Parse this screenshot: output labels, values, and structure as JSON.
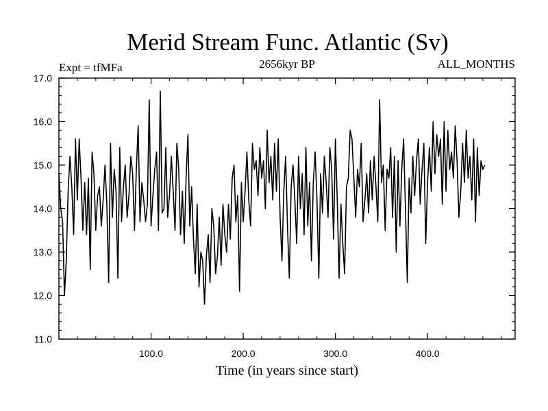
{
  "chart_data": {
    "type": "line",
    "title": "Merid Stream Func. Atlantic (Sv)",
    "subtitle_left": "Expt = tfMFa",
    "subtitle_center": "2656kyr BP",
    "subtitle_right": "ALL_MONTHS",
    "xlabel": "Time (in years since start)",
    "ylabel": "",
    "xlim": [
      0,
      495
    ],
    "ylim": [
      11.0,
      17.0
    ],
    "x_ticks": [
      100,
      200,
      300,
      400
    ],
    "x_tick_labels": [
      "100.0",
      "200.0",
      "300.0",
      "400.0"
    ],
    "y_ticks": [
      11,
      12,
      13,
      14,
      15,
      16,
      17
    ],
    "y_tick_labels": [
      "11.0",
      "12.0",
      "13.0",
      "14.0",
      "15.0",
      "16.0",
      "17.0"
    ],
    "series": [
      {
        "name": "Merid Stream Func. Atlantic",
        "x_start": 0,
        "x_step": 2,
        "values": [
          14.8,
          14.0,
          13.7,
          12.0,
          12.8,
          14.4,
          15.2,
          14.5,
          13.4,
          15.6,
          14.2,
          15.6,
          14.7,
          13.5,
          14.6,
          13.4,
          14.7,
          12.6,
          15.3,
          14.8,
          13.5,
          14.3,
          14.5,
          13.6,
          14.2,
          15.0,
          14.1,
          12.3,
          15.5,
          13.8,
          14.9,
          14.4,
          12.4,
          15.4,
          13.7,
          14.5,
          15.0,
          13.8,
          14.3,
          15.2,
          14.8,
          13.5,
          14.9,
          15.9,
          13.7,
          14.6,
          14.2,
          13.7,
          14.1,
          16.5,
          13.6,
          14.3,
          14.9,
          15.3,
          13.5,
          16.7,
          13.9,
          14.0,
          15.4,
          13.8,
          14.3,
          15.2,
          14.4,
          13.5,
          15.5,
          14.9,
          13.4,
          14.4,
          13.2,
          14.7,
          15.7,
          13.6,
          14.5,
          13.3,
          12.5,
          14.1,
          12.2,
          13.0,
          12.8,
          11.8,
          12.9,
          13.4,
          12.3,
          14.0,
          13.6,
          12.5,
          12.9,
          13.8,
          12.7,
          14.1,
          13.4,
          13.0,
          14.1,
          13.3,
          14.7,
          15.0,
          13.7,
          14.3,
          12.1,
          14.6,
          13.7,
          14.4,
          15.3,
          14.2,
          13.6,
          15.5,
          14.9,
          15.1,
          14.3,
          15.4,
          14.7,
          15.1,
          14.0,
          15.8,
          14.6,
          15.2,
          14.2,
          15.5,
          14.4,
          15.6,
          13.8,
          12.8,
          14.4,
          15.2,
          13.6,
          12.4,
          14.5,
          15.0,
          14.2,
          13.2,
          15.2,
          14.0,
          14.8,
          13.4,
          15.4,
          13.6,
          14.6,
          12.8,
          14.6,
          15.3,
          14.2,
          12.4,
          14.8,
          13.9,
          15.2,
          14.6,
          13.8,
          15.4,
          14.9,
          13.3,
          15.6,
          14.2,
          12.4,
          14.1,
          13.2,
          12.5,
          14.5,
          14.7,
          15.8,
          15.6,
          14.7,
          13.8,
          14.9,
          14.5,
          15.5,
          13.7,
          14.2,
          14.8,
          13.9,
          15.1,
          14.2,
          15.2,
          14.5,
          13.7,
          16.5,
          14.6,
          15.0,
          13.5,
          14.9,
          14.7,
          15.4,
          13.8,
          15.2,
          13.0,
          15.1,
          13.6,
          14.9,
          15.6,
          14.0,
          12.3,
          14.7,
          13.9,
          15.2,
          14.3,
          15.1,
          15.6,
          14.1,
          14.9,
          15.5,
          13.2,
          14.6,
          15.4,
          14.4,
          16.0,
          14.8,
          15.7,
          15.2,
          15.6,
          14.1,
          16.0,
          14.4,
          15.8,
          14.9,
          15.3,
          14.7,
          15.9,
          15.1,
          13.8,
          14.4,
          15.5,
          14.6,
          15.8,
          14.7,
          15.2,
          14.2,
          15.6,
          13.7,
          15.4,
          14.3,
          15.1,
          14.9,
          15.0
        ]
      }
    ]
  }
}
